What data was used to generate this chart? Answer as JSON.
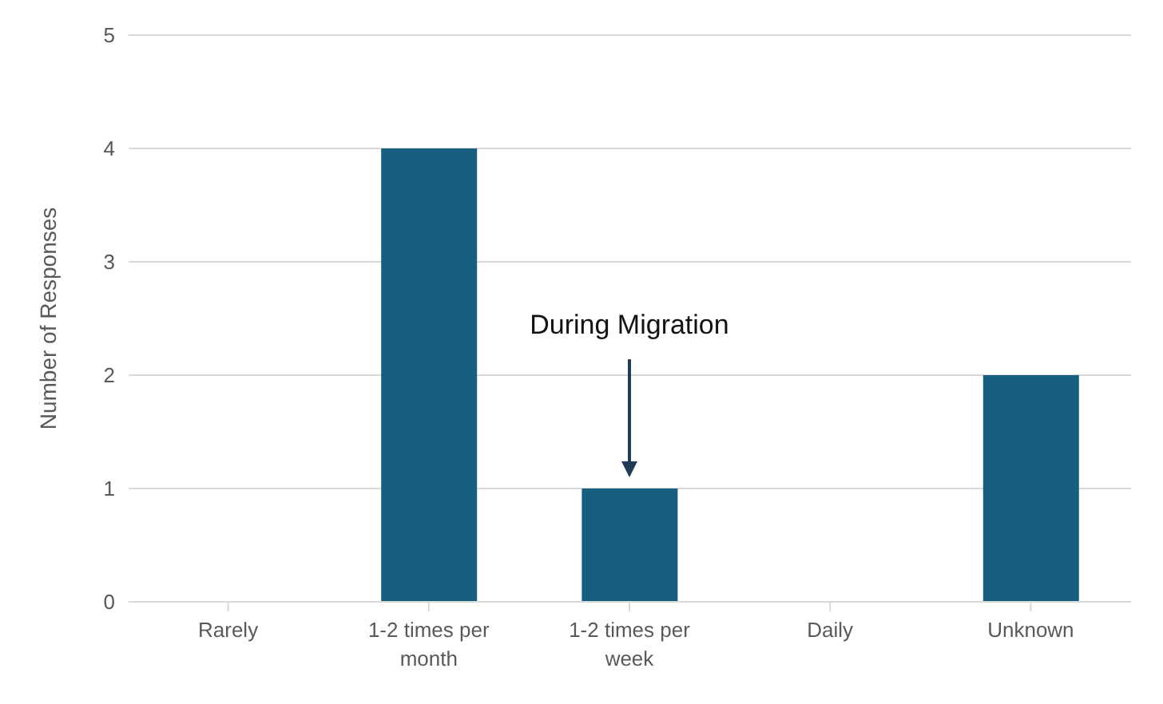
{
  "chart_data": {
    "type": "bar",
    "categories": [
      "Rarely",
      "1-2 times per month",
      "1-2 times per week",
      "Daily",
      "Unknown"
    ],
    "values": [
      0,
      4,
      1,
      0,
      2
    ],
    "color": "#175e7f",
    "ylabel": "Number of Responses",
    "ylim": [
      0,
      5
    ],
    "yticks": [
      0,
      1,
      2,
      3,
      4,
      5
    ],
    "grid": "y",
    "annotations": [
      "During Migration"
    ]
  }
}
